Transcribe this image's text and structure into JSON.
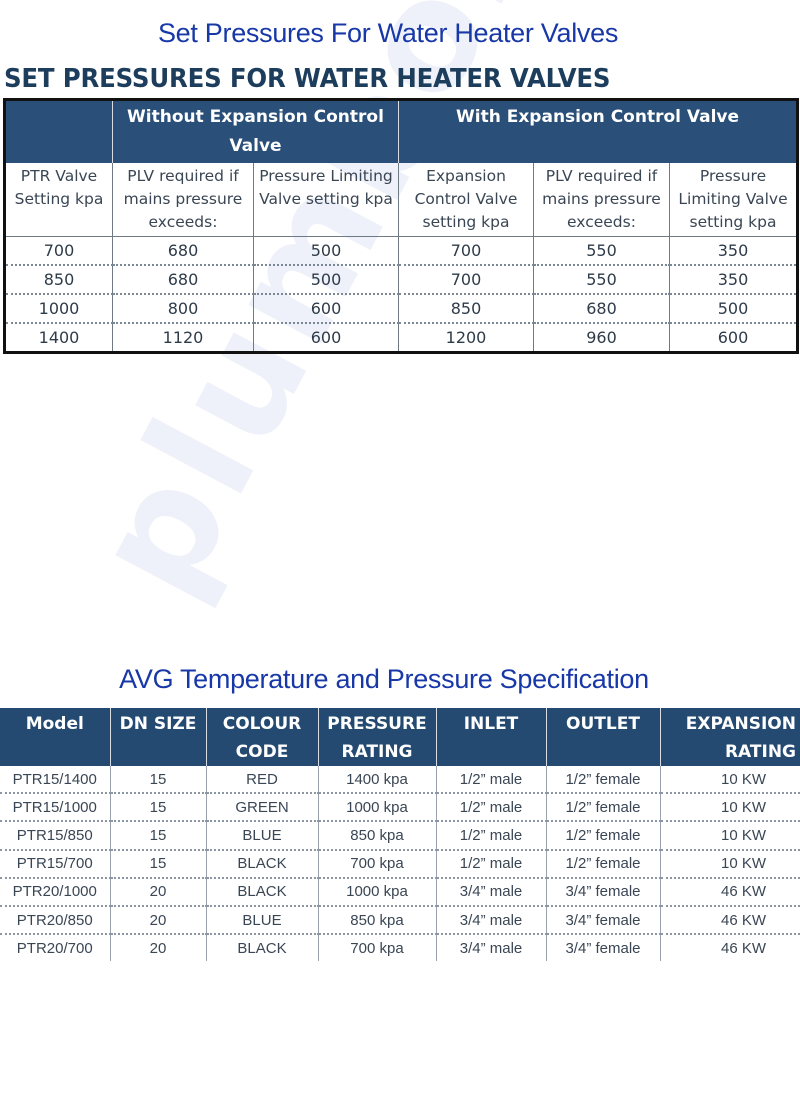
{
  "page": {
    "title_top": "Set Pressures For Water Heater Valves",
    "heading": "SET PRESSURES FOR WATER HEATER VALVES",
    "title_bottom": "AVG Temperature and Pressure Specification",
    "watermark": "plumbonline.net.ru"
  },
  "colors": {
    "title_blue": "#1838a8",
    "header_navy": "#2a4f78",
    "heading_dark": "#1d3d5c"
  },
  "set_pressures": {
    "group_headers": [
      "",
      "Without Expansion Control Valve",
      "With Expansion Control Valve"
    ],
    "sub_headers": [
      "PTR Valve Setting kpa",
      "PLV required if mains pressure exceeds:",
      "Pressure Limiting Valve setting kpa",
      "Expansion Control Valve setting kpa",
      "PLV required if mains pressure exceeds:",
      "Pressure Limiting Valve setting kpa"
    ],
    "rows": [
      [
        "700",
        "680",
        "500",
        "700",
        "550",
        "350"
      ],
      [
        "850",
        "680",
        "500",
        "700",
        "550",
        "350"
      ],
      [
        "1000",
        "800",
        "600",
        "850",
        "680",
        "500"
      ],
      [
        "1400",
        "1120",
        "600",
        "1200",
        "960",
        "600"
      ]
    ]
  },
  "avg_spec": {
    "headers": [
      "Model",
      "DN SIZE",
      "COLOUR CODE",
      "PRESSURE RATING",
      "INLET",
      "OUTLET",
      "EXPANSION RATING"
    ],
    "rows": [
      [
        "PTR15/1400",
        "15",
        "RED",
        "1400 kpa",
        "1/2” male",
        "1/2” female",
        "10 KW"
      ],
      [
        "PTR15/1000",
        "15",
        "GREEN",
        "1000 kpa",
        "1/2” male",
        "1/2” female",
        "10 KW"
      ],
      [
        "PTR15/850",
        "15",
        "BLUE",
        "850 kpa",
        "1/2” male",
        "1/2” female",
        "10 KW"
      ],
      [
        "PTR15/700",
        "15",
        "BLACK",
        "700 kpa",
        "1/2” male",
        "1/2” female",
        "10 KW"
      ],
      [
        "PTR20/1000",
        "20",
        "BLACK",
        "1000 kpa",
        "3/4” male",
        "3/4” female",
        "46 KW"
      ],
      [
        "PTR20/850",
        "20",
        "BLUE",
        "850 kpa",
        "3/4” male",
        "3/4” female",
        "46 KW"
      ],
      [
        "PTR20/700",
        "20",
        "BLACK",
        "700 kpa",
        "3/4” male",
        "3/4” female",
        "46 KW"
      ]
    ]
  }
}
